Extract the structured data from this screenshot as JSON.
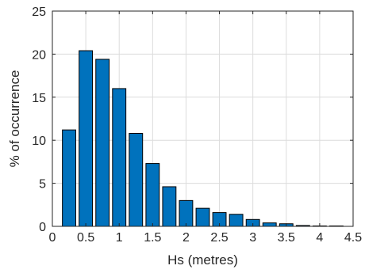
{
  "chart_data": {
    "type": "bar",
    "xlabel": "Hs (metres)",
    "ylabel": "% of occurrence",
    "xlim": [
      0,
      4.5
    ],
    "ylim": [
      0,
      25
    ],
    "xticks": [
      "0",
      "0.5",
      "1",
      "1.5",
      "2",
      "2.5",
      "3",
      "3.5",
      "4",
      "4.5"
    ],
    "yticks": [
      "0",
      "5",
      "10",
      "15",
      "20",
      "25"
    ],
    "grid": true,
    "bar_color": "#0072BD",
    "x": [
      0.25,
      0.5,
      0.75,
      1.0,
      1.25,
      1.5,
      1.75,
      2.0,
      2.25,
      2.5,
      2.75,
      3.0,
      3.25,
      3.5,
      3.75,
      4.0,
      4.25
    ],
    "values": [
      11.2,
      20.4,
      19.4,
      16.0,
      10.8,
      7.3,
      4.6,
      3.0,
      2.1,
      1.6,
      1.4,
      0.8,
      0.4,
      0.3,
      0.1,
      0.05,
      0.05
    ]
  }
}
